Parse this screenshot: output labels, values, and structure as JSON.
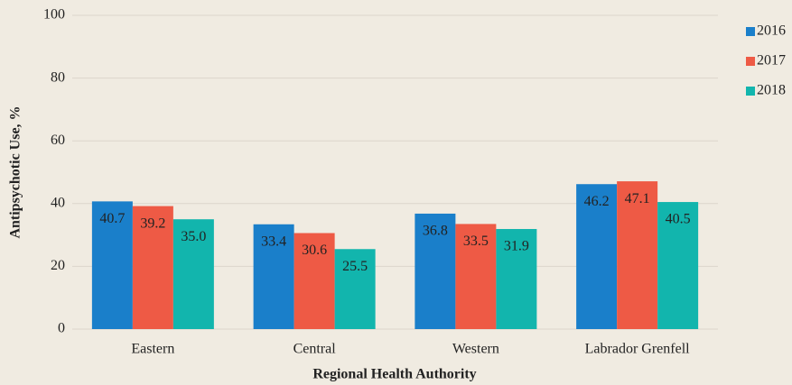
{
  "chart_data": {
    "type": "bar",
    "xlabel": "Regional Health Authority",
    "ylabel": "Antipsychotic Use, %",
    "categories": [
      "Eastern",
      "Central",
      "Western",
      "Labrador Grenfell"
    ],
    "series": [
      {
        "name": "2016",
        "color": "#1a7fca",
        "values": [
          40.7,
          33.4,
          36.8,
          46.2
        ],
        "value_labels": [
          "40.7",
          "33.4",
          "36.8",
          "46.2"
        ]
      },
      {
        "name": "2017",
        "color": "#ee5a45",
        "values": [
          39.2,
          30.6,
          33.5,
          47.1
        ],
        "value_labels": [
          "39.2",
          "30.6",
          "33.5",
          "47.1"
        ]
      },
      {
        "name": "2018",
        "color": "#12b5ad",
        "values": [
          35,
          25.5,
          31.9,
          40.5
        ],
        "value_labels": [
          "35.0",
          "25.5",
          "31.9",
          "40.5"
        ]
      }
    ],
    "ylim": [
      0,
      100
    ],
    "yticks": [
      0,
      20,
      40,
      60,
      80,
      100
    ],
    "grid": true,
    "legend": "right"
  }
}
